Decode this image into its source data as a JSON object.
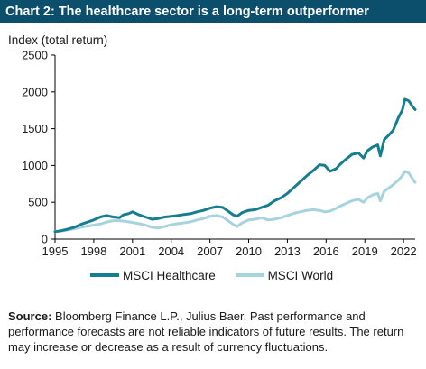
{
  "title": "Chart 2: The healthcare sector is a long-term outperformer",
  "source_label": "Source:",
  "source_text": "Bloomberg Finance L.P., Julius Baer. Past performance and performance forecasts are not reliable indicators of future results. The return may increase or decrease as a result of currency fluctuations.",
  "colors": {
    "title_bg": "#0b4f6c",
    "healthcare": "#177e8f",
    "world": "#a7d3dd",
    "axis": "#000000"
  },
  "chart_data": {
    "type": "line",
    "ylabel": "Index (total return)",
    "xlabel": "",
    "xlim": [
      1995,
      2022.9
    ],
    "ylim": [
      0,
      2500
    ],
    "x_ticks": [
      1995,
      1998,
      2001,
      2004,
      2007,
      2010,
      2013,
      2016,
      2019,
      2022
    ],
    "y_ticks": [
      0,
      500,
      1000,
      1500,
      2000,
      2500
    ],
    "grid": false,
    "legend_position": "bottom",
    "series": [
      {
        "name": "MSCI Healthcare",
        "x": [
          1995,
          1995.5,
          1996,
          1996.5,
          1997,
          1997.5,
          1998,
          1998.5,
          1999,
          1999.5,
          2000,
          2000.3,
          2000.7,
          2001,
          2001.5,
          2002,
          2002.5,
          2003,
          2003.5,
          2004,
          2004.5,
          2005,
          2005.5,
          2006,
          2006.5,
          2007,
          2007.5,
          2008,
          2008.4,
          2008.8,
          2009.1,
          2009.5,
          2010,
          2010.5,
          2011,
          2011.5,
          2012,
          2012.5,
          2013,
          2013.5,
          2014,
          2014.5,
          2015,
          2015.5,
          2015.9,
          2016.3,
          2016.8,
          2017,
          2017.5,
          2018,
          2018.5,
          2018.9,
          2019.2,
          2019.6,
          2020,
          2020.2,
          2020.5,
          2020.9,
          2021.2,
          2021.6,
          2021.9,
          2022.1,
          2022.4,
          2022.7,
          2022.9
        ],
        "values": [
          100,
          115,
          135,
          160,
          200,
          230,
          260,
          300,
          320,
          300,
          290,
          330,
          345,
          370,
          330,
          300,
          270,
          280,
          300,
          310,
          320,
          335,
          345,
          370,
          390,
          420,
          440,
          430,
          380,
          330,
          310,
          360,
          390,
          400,
          430,
          460,
          520,
          560,
          620,
          700,
          780,
          860,
          930,
          1010,
          1000,
          920,
          960,
          1000,
          1080,
          1150,
          1170,
          1100,
          1200,
          1250,
          1280,
          1130,
          1350,
          1420,
          1480,
          1650,
          1750,
          1900,
          1880,
          1800,
          1760
        ]
      },
      {
        "name": "MSCI World",
        "x": [
          1995,
          1995.5,
          1996,
          1996.5,
          1997,
          1997.5,
          1998,
          1998.5,
          1999,
          1999.5,
          2000,
          2000.5,
          2001,
          2001.5,
          2002,
          2002.5,
          2003,
          2003.5,
          2004,
          2004.5,
          2005,
          2005.5,
          2006,
          2006.5,
          2007,
          2007.5,
          2008,
          2008.4,
          2008.8,
          2009.1,
          2009.5,
          2010,
          2010.5,
          2011,
          2011.5,
          2012,
          2012.5,
          2013,
          2013.5,
          2014,
          2014.5,
          2015,
          2015.5,
          2015.9,
          2016.3,
          2016.8,
          2017,
          2017.5,
          2018,
          2018.5,
          2018.9,
          2019.2,
          2019.6,
          2020,
          2020.2,
          2020.5,
          2020.9,
          2021.2,
          2021.6,
          2021.9,
          2022.1,
          2022.4,
          2022.7,
          2022.9
        ],
        "values": [
          100,
          110,
          125,
          140,
          160,
          175,
          190,
          205,
          230,
          250,
          250,
          240,
          225,
          210,
          190,
          160,
          150,
          170,
          195,
          210,
          220,
          235,
          260,
          280,
          310,
          320,
          300,
          250,
          200,
          170,
          220,
          260,
          270,
          290,
          260,
          270,
          290,
          320,
          350,
          370,
          390,
          400,
          390,
          370,
          380,
          420,
          440,
          480,
          520,
          540,
          500,
          560,
          600,
          620,
          520,
          650,
          700,
          740,
          800,
          860,
          920,
          900,
          820,
          770
        ]
      }
    ]
  }
}
